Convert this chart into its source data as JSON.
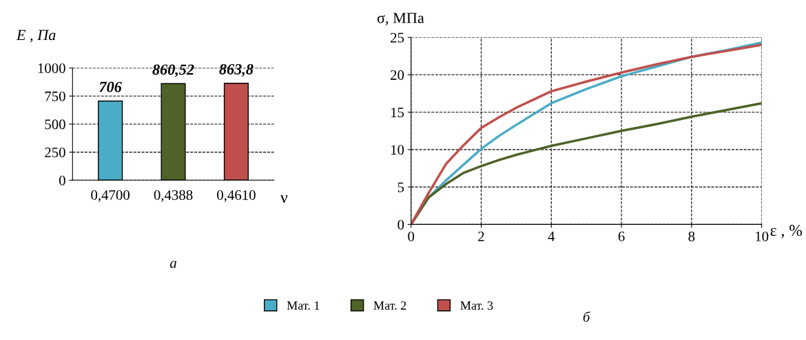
{
  "chart_data": [
    {
      "type": "bar",
      "categories": [
        "0,4700",
        "0,4388",
        "0,4610"
      ],
      "values": [
        706,
        860.52,
        863.8
      ],
      "value_labels": [
        "706",
        "860,52",
        "863,8"
      ],
      "colors": [
        "#4bacc6",
        "#4f6228",
        "#c0504d"
      ],
      "ylabel": "E , Па",
      "xlabel": "ν",
      "ylim": [
        0,
        1000
      ],
      "yticks": [
        0,
        250,
        500,
        750,
        1000
      ],
      "grid": "y",
      "annotations": [
        "а"
      ]
    },
    {
      "type": "line",
      "xlabel": "ε , %",
      "ylabel": "σ, МПа",
      "xlim": [
        0,
        10
      ],
      "xticks": [
        0,
        2,
        4,
        6,
        8,
        10
      ],
      "ylim": [
        0,
        25
      ],
      "yticks": [
        0,
        5,
        10,
        15,
        20,
        25
      ],
      "grid": true,
      "legend": "bottom",
      "line_style": "solid",
      "marker": "none",
      "x": [
        0,
        0.5,
        1,
        1.5,
        2,
        2.5,
        3,
        4,
        5,
        6,
        7,
        8,
        9,
        10
      ],
      "series": [
        {
          "name": "Мат. 1",
          "color": "#4bacc6",
          "values": [
            0,
            3.6,
            5.9,
            8.0,
            10.1,
            11.8,
            13.3,
            16.2,
            18.1,
            19.8,
            21.1,
            22.4,
            23.3,
            24.3
          ]
        },
        {
          "name": "Мат. 2",
          "color": "#4f6228",
          "values": [
            0,
            3.6,
            5.4,
            6.9,
            7.8,
            8.6,
            9.3,
            10.5,
            11.5,
            12.5,
            13.4,
            14.4,
            15.3,
            16.2
          ]
        },
        {
          "name": "Мат. 3",
          "color": "#c0504d",
          "values": [
            0,
            4.2,
            8.1,
            10.6,
            12.9,
            14.3,
            15.6,
            17.8,
            19.1,
            20.3,
            21.4,
            22.4,
            23.2,
            24.0
          ]
        }
      ],
      "annotations": [
        "б"
      ]
    }
  ]
}
